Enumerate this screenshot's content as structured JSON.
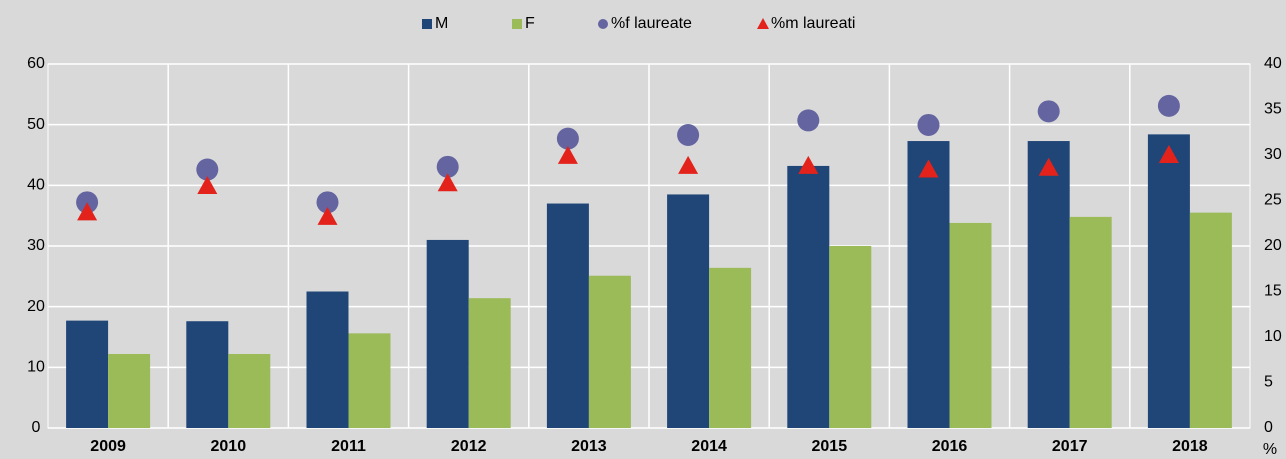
{
  "chart_data": {
    "type": "bar",
    "categories": [
      "2009",
      "2010",
      "2011",
      "2012",
      "2013",
      "2014",
      "2015",
      "2016",
      "2017",
      "2018"
    ],
    "series": [
      {
        "name": "M",
        "color": "#1f4677",
        "values": [
          17.7,
          17.6,
          22.5,
          31,
          37,
          38.5,
          43.2,
          47.3,
          47.3,
          48.4
        ]
      },
      {
        "name": "F",
        "color": "#9bbb59",
        "values": [
          12.2,
          12.2,
          15.6,
          21.4,
          25.1,
          26.4,
          30,
          33.8,
          34.8,
          35.5
        ]
      },
      {
        "name": "%f laureate",
        "color": "#6464a0",
        "marker": "circle",
        "axis": "y2",
        "values": [
          24.8,
          28.4,
          24.8,
          28.7,
          31.8,
          32.2,
          33.8,
          33.3,
          34.8,
          35.4
        ]
      },
      {
        "name": "%m laureati",
        "color": "#e3231b",
        "marker": "triangle",
        "axis": "y2",
        "values": [
          23.7,
          26.6,
          23.2,
          26.9,
          29.9,
          28.8,
          28.8,
          28.4,
          28.6,
          30
        ]
      }
    ],
    "ylim": [
      0,
      60
    ],
    "yticks": [
      0,
      10,
      20,
      30,
      40,
      50,
      60
    ],
    "y2lim": [
      0,
      40
    ],
    "y2ticks": [
      0,
      5,
      10,
      15,
      20,
      25,
      30,
      35,
      40
    ],
    "y2label": "%",
    "grid": true,
    "legend": "top"
  }
}
